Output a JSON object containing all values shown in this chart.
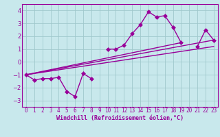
{
  "xlabel": "Windchill (Refroidissement éolien,°C)",
  "x_values": [
    0,
    1,
    2,
    3,
    4,
    5,
    6,
    7,
    8,
    9,
    10,
    11,
    12,
    13,
    14,
    15,
    16,
    17,
    18,
    19,
    20,
    21,
    22,
    23
  ],
  "line1_y": [
    -1.0,
    -1.4,
    -1.3,
    -1.3,
    -1.2,
    -2.3,
    -2.7,
    -0.9,
    -1.3,
    null,
    1.0,
    1.0,
    1.3,
    2.2,
    2.9,
    3.9,
    3.5,
    3.6,
    2.7,
    1.5,
    null,
    1.2,
    2.5,
    1.7
  ],
  "trend1": [
    0,
    23,
    -1.0,
    1.7
  ],
  "trend2": [
    0,
    23,
    -1.0,
    1.2
  ],
  "trend3": [
    0,
    19,
    -1.0,
    1.5
  ],
  "line_color": "#990099",
  "bg_color": "#c8e8ec",
  "grid_color": "#a0c8cc",
  "ylim": [
    -3.5,
    4.5
  ],
  "xlim": [
    -0.5,
    23.5
  ],
  "yticks": [
    -3,
    -2,
    -1,
    0,
    1,
    2,
    3,
    4
  ],
  "xticks": [
    0,
    1,
    2,
    3,
    4,
    5,
    6,
    7,
    8,
    9,
    10,
    11,
    12,
    13,
    14,
    15,
    16,
    17,
    18,
    19,
    20,
    21,
    22,
    23
  ],
  "marker": "D",
  "markersize": 3,
  "linewidth": 1.0,
  "tick_fontsize": 5.5,
  "xlabel_fontsize": 6.0
}
